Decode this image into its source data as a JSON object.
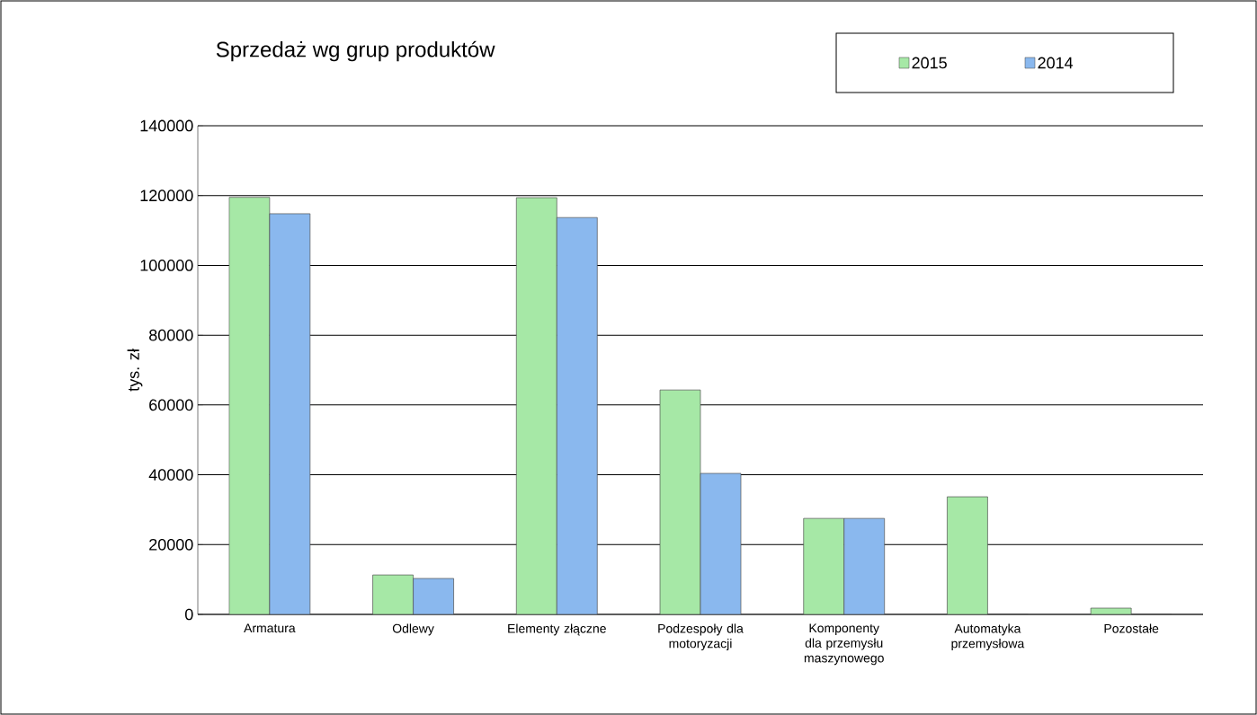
{
  "chart_data": {
    "type": "bar",
    "title": "Sprzedaż wg grup produktów",
    "ylabel": "tys. zł",
    "categories": [
      "Armatura",
      "Odlewy",
      "Elementy złączne",
      "Podzespoły dla motoryzacji",
      "Komponenty dla przemysłu maszynowego",
      "Automatyka przemysłowa",
      "Pozostałe"
    ],
    "series": [
      {
        "name": "2015",
        "color": "#a6e8a6",
        "values": [
          119500,
          11300,
          119400,
          64300,
          27500,
          33700,
          1800
        ]
      },
      {
        "name": "2014",
        "color": "#8ab8ee",
        "values": [
          114800,
          10300,
          113700,
          40400,
          27500,
          0,
          0
        ]
      }
    ],
    "ylim": [
      0,
      140000
    ],
    "yticks": [
      0,
      20000,
      40000,
      60000,
      80000,
      100000,
      120000,
      140000
    ],
    "grid": "y",
    "legend": "top right"
  }
}
